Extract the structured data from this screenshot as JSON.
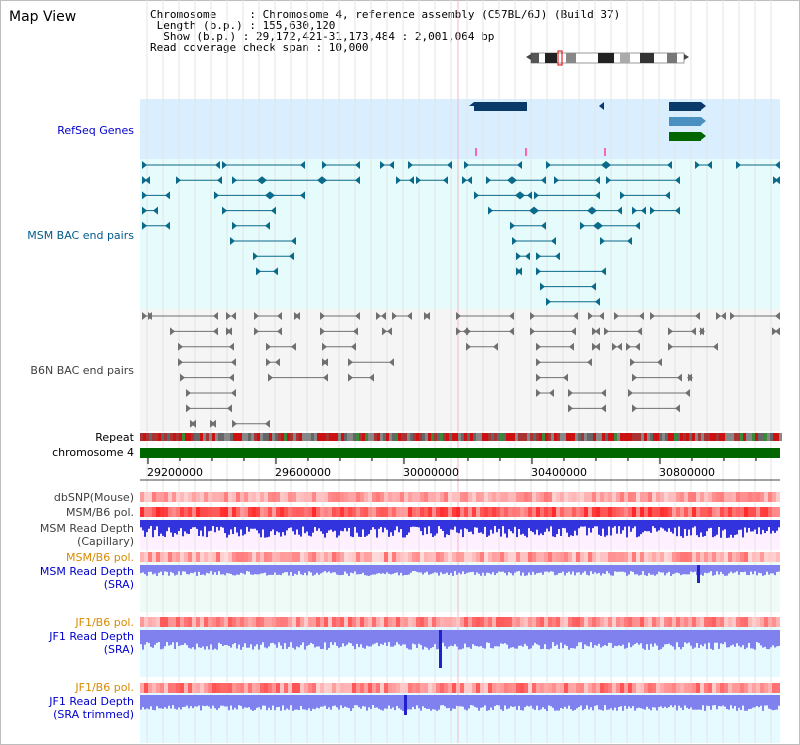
{
  "view_title": "Map View",
  "header": {
    "line1": "Chromosome     : Chromosome 4, reference assembly (C57BL/6J) (Build 37)",
    "line2": " Length (b.p.) : 155,630,120",
    "line3": "  Show (b.p.) : 29,172,421-31,173,484 : 2,001,064 bp",
    "line4": "Read coverage check span : 10,000"
  },
  "tracks": {
    "refseq": "RefSeq Genes",
    "msm_bac": "MSM BAC end pairs",
    "b6n_bac": "B6N BAC end pairs",
    "repeat": "Repeat",
    "chromosome": "chromosome 4",
    "dbsnp": "dbSNP(Mouse)",
    "msm_b6_pol_1": "MSM/B6 pol.",
    "msm_read_depth_cap_1": "MSM Read Depth",
    "msm_read_depth_cap_2": "(Capillary)",
    "msm_b6_pol_2": "MSM/B6 pol.",
    "msm_read_depth_sra_1": "MSM Read Depth",
    "msm_read_depth_sra_2": "(SRA)",
    "jf1_b6_pol_1": "JF1/B6 pol.",
    "jf1_read_depth_sra_1": "JF1 Read Depth",
    "jf1_read_depth_sra_2": "(SRA)",
    "jf1_b6_pol_2": "JF1/B6 pol.",
    "jf1_read_depth_trim_1": "JF1 Read Depth",
    "jf1_read_depth_trim_2": "(SRA trimmed)"
  },
  "axis": {
    "ticks": [
      "29200000",
      "29600000",
      "30000000",
      "30400000",
      "30800000"
    ]
  },
  "colors": {
    "refseq_bg": "#d9efff",
    "bac_bg": "#e6fbfb",
    "b6n_bg": "#f5f5f5",
    "lower_bg": "#eefbf7",
    "msm_feature": "#0a6a8a",
    "b6n_feature": "#707070",
    "chromosome_bar": "#006600",
    "gene_dark": "#0a3a6a",
    "gene_mid": "#4a90c0",
    "gene_green": "#006600",
    "depth_blue": "#3333dd",
    "depth_light": "#8080ee"
  }
}
